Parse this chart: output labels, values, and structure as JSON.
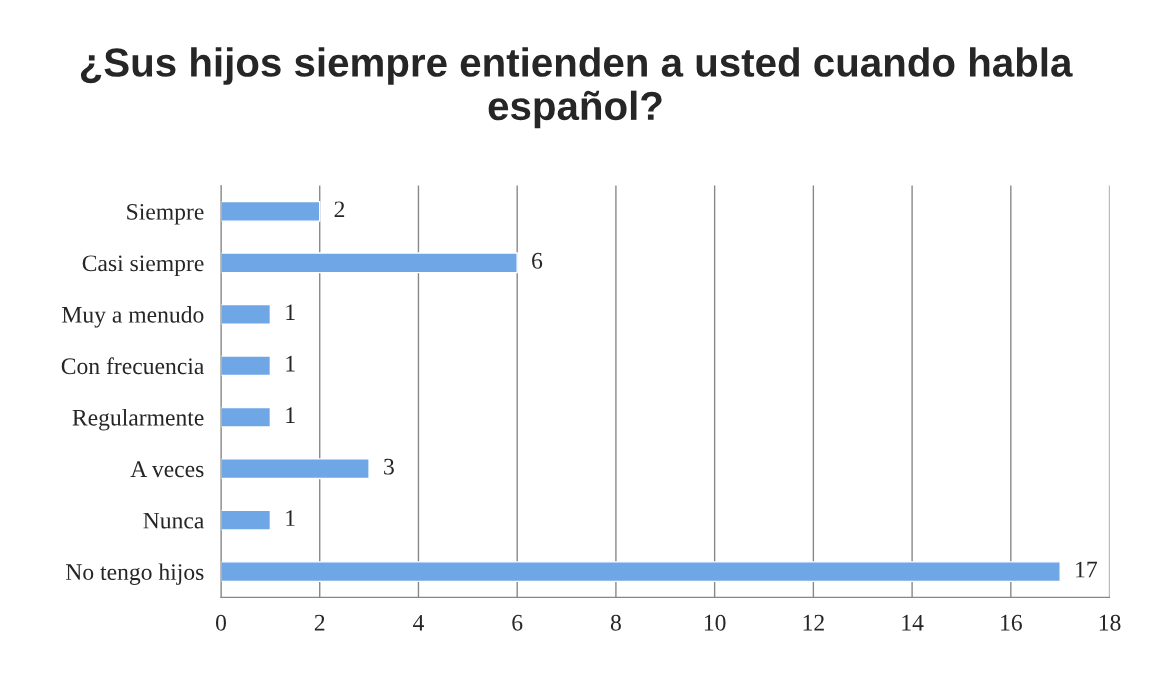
{
  "chart_data": {
    "type": "bar",
    "orientation": "horizontal",
    "title": "¿Sus hijos siempre entienden a usted cuando habla español?",
    "categories": [
      "Siempre",
      "Casi siempre",
      "Muy a menudo",
      "Con frecuencia",
      "Regularmente",
      "A veces",
      "Nunca",
      "No tengo hijos"
    ],
    "values": [
      2,
      6,
      1,
      1,
      1,
      3,
      1,
      17
    ],
    "color": "#6fa6e6",
    "xlim": [
      0,
      18
    ],
    "xticks": [
      0,
      2,
      4,
      6,
      8,
      10,
      12,
      14,
      16,
      18
    ],
    "grid": "x",
    "data_labels": true
  }
}
